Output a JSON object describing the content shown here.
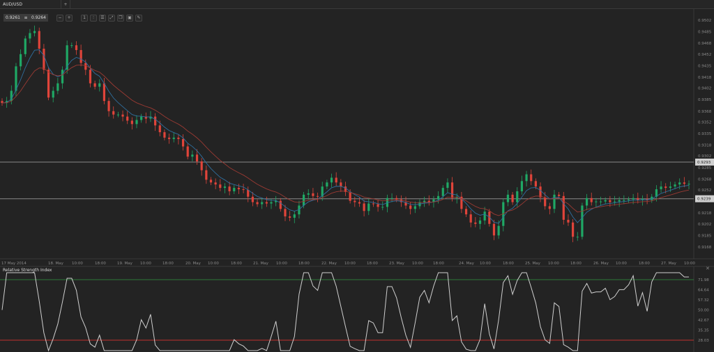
{
  "tabs": {
    "active": "AUD/USD",
    "add_label": "+"
  },
  "toolbar": {
    "bid": "0.9261",
    "ask": "0.9264",
    "spread_icon": "≡",
    "icons": [
      "zoom-out-icon",
      "zoom-in-icon",
      "timeframe-icon",
      "chart-type-icon",
      "indicators-icon",
      "drawing-icon",
      "templates-icon",
      "screenshot-icon",
      "settings-icon"
    ]
  },
  "colors": {
    "up": "#1fa865",
    "down": "#e0443a",
    "ema_fast": "#2f6f9f",
    "ema_slow": "#9b3a33",
    "rsi_line": "#cfcfcf",
    "rsi_upper": "#2e7a3a",
    "rsi_lower": "#c0302c",
    "bg": "#232323"
  },
  "chart_data": [
    {
      "type": "candlestick",
      "title": "AUD/USD",
      "x_ticks": [
        "17 May 2014",
        "18. May",
        "10:00",
        "18:00",
        "19. May",
        "10:00",
        "18:00",
        "20. May",
        "10:00",
        "18:00",
        "21. May",
        "10:00",
        "18:00",
        "22. May",
        "10:00",
        "18:00",
        "23. May",
        "10:00",
        "18:00",
        "24. May",
        "10:00",
        "18:00",
        "25. May",
        "10:00",
        "18:00",
        "26. May",
        "10:00",
        "18:00",
        "27. May",
        "10:00"
      ],
      "y_ticks": [
        "0.9502",
        "0.9485",
        "0.9468",
        "0.9452",
        "0.9435",
        "0.9418",
        "0.9402",
        "0.9385",
        "0.9368",
        "0.9352",
        "0.9335",
        "0.9318",
        "0.9302",
        "0.9285",
        "0.9268",
        "0.9252",
        "0.9218",
        "0.9202",
        "0.9185",
        "0.9168"
      ],
      "ylim": [
        0.916,
        0.9515
      ],
      "price_lines": [
        {
          "value": 0.9293,
          "label": "0.9293"
        },
        {
          "value": 0.9239,
          "label": "0.9239"
        }
      ],
      "moving_averages": [
        {
          "type": "EMA fast"
        },
        {
          "type": "EMA slow"
        }
      ],
      "close": [
        0.938,
        0.9383,
        0.9398,
        0.9434,
        0.9452,
        0.9475,
        0.9483,
        0.9486,
        0.946,
        0.9429,
        0.9388,
        0.9398,
        0.9409,
        0.9429,
        0.9465,
        0.9465,
        0.9458,
        0.9439,
        0.9429,
        0.9409,
        0.9404,
        0.9409,
        0.9383,
        0.9368,
        0.9363,
        0.9363,
        0.936,
        0.9354,
        0.9349,
        0.9355,
        0.936,
        0.9357,
        0.936,
        0.9347,
        0.9337,
        0.9329,
        0.9327,
        0.9329,
        0.9327,
        0.9316,
        0.9301,
        0.9304,
        0.9294,
        0.9281,
        0.9267,
        0.9263,
        0.926,
        0.9255,
        0.9257,
        0.925,
        0.9255,
        0.9253,
        0.9252,
        0.9242,
        0.9234,
        0.9231,
        0.9234,
        0.9232,
        0.9234,
        0.9236,
        0.9224,
        0.9213,
        0.9211,
        0.9216,
        0.9229,
        0.9245,
        0.9247,
        0.9243,
        0.9242,
        0.9257,
        0.9263,
        0.927,
        0.9263,
        0.9257,
        0.9249,
        0.9236,
        0.9234,
        0.9232,
        0.9221,
        0.9232,
        0.9231,
        0.9227,
        0.9227,
        0.924,
        0.924,
        0.9238,
        0.9234,
        0.9229,
        0.9224,
        0.9228,
        0.9234,
        0.9236,
        0.9234,
        0.9238,
        0.9243,
        0.9255,
        0.9263,
        0.924,
        0.9242,
        0.9224,
        0.9216,
        0.9204,
        0.9202,
        0.9207,
        0.922,
        0.9202,
        0.9185,
        0.9199,
        0.9234,
        0.9245,
        0.9234,
        0.925,
        0.9265,
        0.9275,
        0.9265,
        0.9257,
        0.9241,
        0.9228,
        0.9224,
        0.9245,
        0.9243,
        0.9208,
        0.9204,
        0.9183,
        0.9183,
        0.9229,
        0.924,
        0.9234,
        0.9235,
        0.9235,
        0.9237,
        0.9234,
        0.9235,
        0.9237,
        0.9237,
        0.9238,
        0.924,
        0.9237,
        0.9239,
        0.9237,
        0.9242,
        0.9253,
        0.9257,
        0.9255,
        0.9257,
        0.926,
        0.9263,
        0.9261,
        0.9261
      ]
    },
    {
      "type": "line",
      "title": "Relative Strength Index",
      "y_ticks": [
        "71.98",
        "64.64",
        "57.32",
        "50.00",
        "42.67",
        "35.35",
        "28.03"
      ],
      "ylim": [
        22,
        80
      ],
      "levels": [
        71.98,
        28.03
      ],
      "period": 14,
      "close_button": "✕"
    }
  ]
}
